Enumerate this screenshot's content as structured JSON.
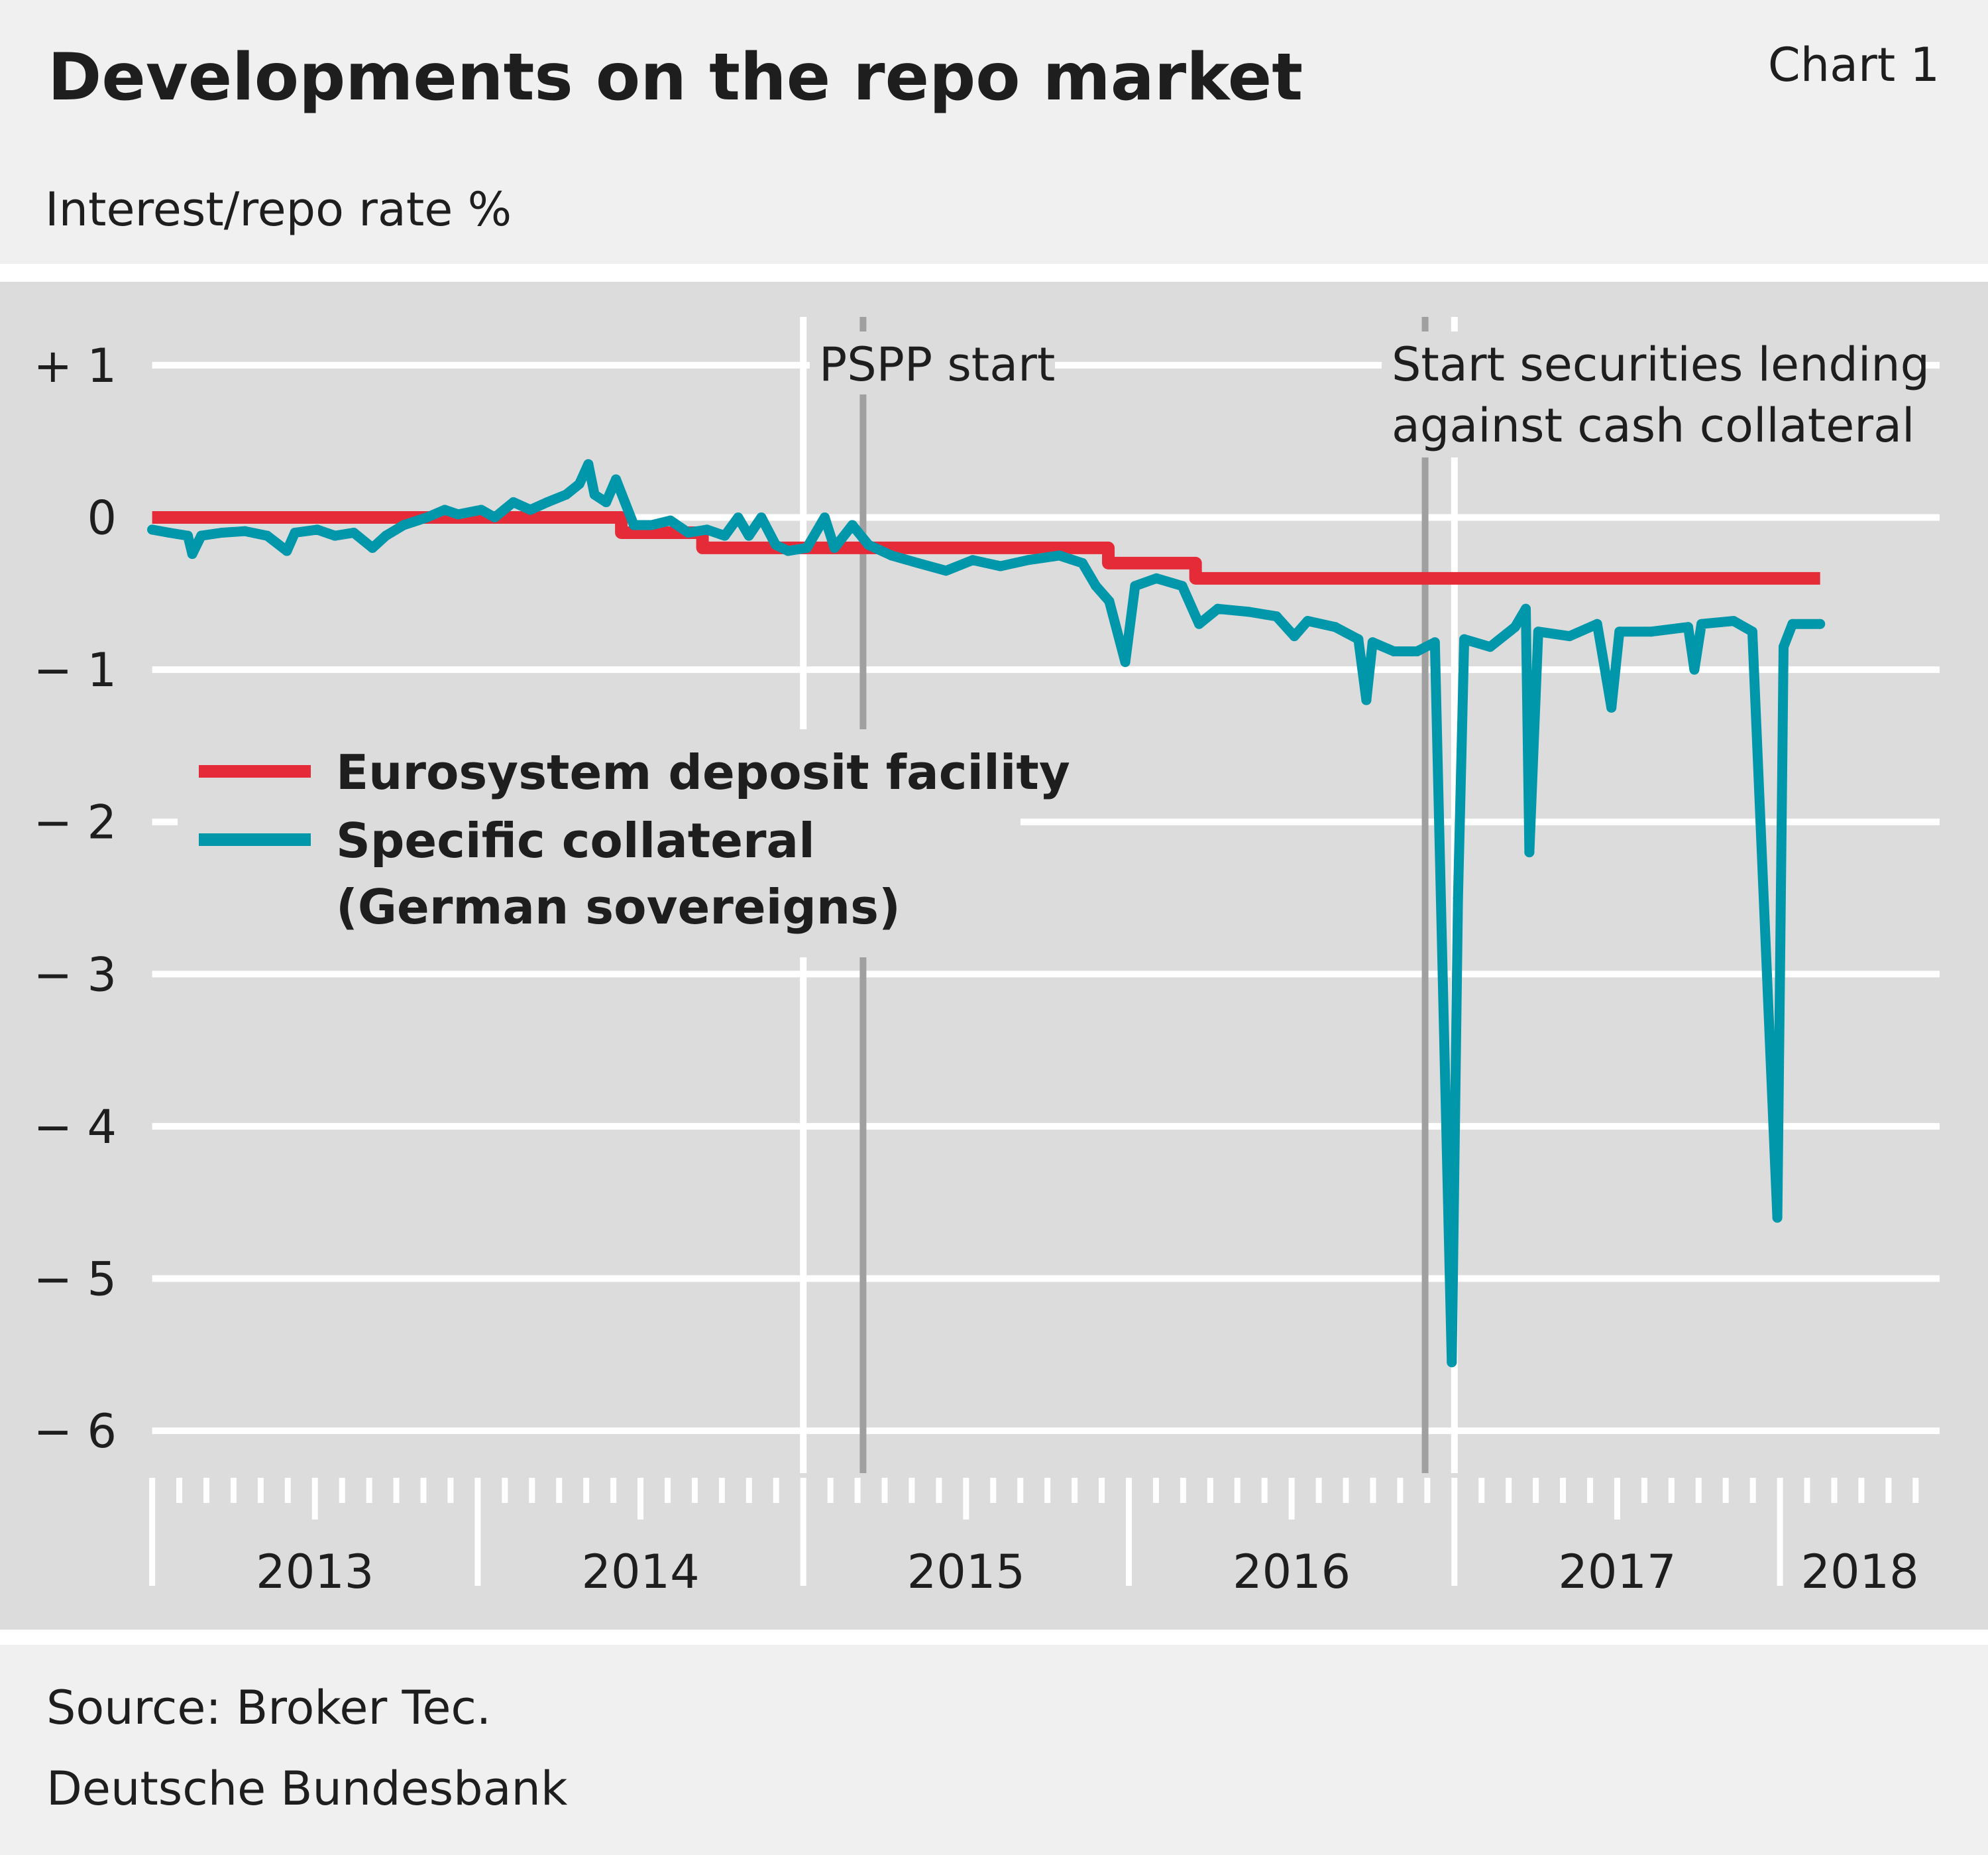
{
  "header": {
    "title": "Developments on the repo market",
    "chart_number": "Chart 1",
    "unit_label": "Interest/repo rate %"
  },
  "footer": {
    "source": "Source: Broker Tec.",
    "publisher": "Deutsche Bundesbank"
  },
  "chart_data": {
    "type": "line",
    "title": "Developments on the repo market",
    "ylabel": "Interest/repo rate %",
    "xlabel": "",
    "ylim": [
      -6,
      1
    ],
    "xlim": [
      "2013-01-01",
      "2018-06-30"
    ],
    "yticks": [
      1,
      0,
      -1,
      -2,
      -3,
      -4,
      -5,
      -6
    ],
    "ytick_labels": [
      "+ 1",
      "0",
      "− 1",
      "− 2",
      "− 3",
      "− 4",
      "− 5",
      "− 6"
    ],
    "xtick_labels": [
      "2013",
      "2014",
      "2015",
      "2016",
      "2017",
      "2018"
    ],
    "grid": true,
    "legend_position": "center-left",
    "colors": {
      "deposit": "#e52b38",
      "collateral": "#0097ab",
      "event_line": "#a0a0a0",
      "plot_bg": "#dcdcdc",
      "page_bg": "#f0f0f0"
    },
    "annotations": [
      {
        "date": "2015-03-09",
        "lines": [
          "PSPP start"
        ]
      },
      {
        "date": "2016-12-08",
        "lines": [
          "Start securities lending",
          "against cash collateral"
        ]
      }
    ],
    "series": [
      {
        "name": "Eurosystem deposit facility",
        "step": true,
        "points": [
          [
            "2013-01-01",
            0
          ],
          [
            "2014-06-11",
            -0.1
          ],
          [
            "2014-09-10",
            -0.2
          ],
          [
            "2015-12-09",
            -0.3
          ],
          [
            "2016-03-16",
            -0.4
          ],
          [
            "2018-02-15",
            -0.4
          ]
        ]
      },
      {
        "name": "Specific collateral (German sovereigns)",
        "name_lines": [
          "Specific collateral",
          "(German sovereigns)"
        ],
        "points": [
          [
            "2013-01-01",
            -0.08
          ],
          [
            "2013-01-20",
            -0.1
          ],
          [
            "2013-02-10",
            -0.12
          ],
          [
            "2013-02-15",
            -0.24
          ],
          [
            "2013-02-25",
            -0.12
          ],
          [
            "2013-03-20",
            -0.1
          ],
          [
            "2013-04-15",
            -0.09
          ],
          [
            "2013-05-10",
            -0.12
          ],
          [
            "2013-06-01",
            -0.22
          ],
          [
            "2013-06-10",
            -0.1
          ],
          [
            "2013-07-05",
            -0.08
          ],
          [
            "2013-07-25",
            -0.12
          ],
          [
            "2013-08-15",
            -0.1
          ],
          [
            "2013-09-05",
            -0.2
          ],
          [
            "2013-09-20",
            -0.12
          ],
          [
            "2013-10-10",
            -0.05
          ],
          [
            "2013-11-05",
            0.0
          ],
          [
            "2013-11-25",
            0.05
          ],
          [
            "2013-12-10",
            0.02
          ],
          [
            "2014-01-05",
            0.05
          ],
          [
            "2014-01-20",
            0.0
          ],
          [
            "2014-02-10",
            0.1
          ],
          [
            "2014-03-01",
            0.05
          ],
          [
            "2014-03-20",
            0.1
          ],
          [
            "2014-04-10",
            0.15
          ],
          [
            "2014-04-25",
            0.22
          ],
          [
            "2014-05-05",
            0.35
          ],
          [
            "2014-05-12",
            0.15
          ],
          [
            "2014-05-25",
            0.1
          ],
          [
            "2014-06-05",
            0.25
          ],
          [
            "2014-06-15",
            0.1
          ],
          [
            "2014-06-25",
            -0.05
          ],
          [
            "2014-07-15",
            -0.05
          ],
          [
            "2014-08-05",
            -0.02
          ],
          [
            "2014-08-25",
            -0.1
          ],
          [
            "2014-09-15",
            -0.08
          ],
          [
            "2014-10-05",
            -0.12
          ],
          [
            "2014-10-20",
            0.0
          ],
          [
            "2014-11-01",
            -0.12
          ],
          [
            "2014-11-15",
            0.0
          ],
          [
            "2014-12-01",
            -0.18
          ],
          [
            "2014-12-15",
            -0.22
          ],
          [
            "2015-01-05",
            -0.2
          ],
          [
            "2015-01-25",
            0.0
          ],
          [
            "2015-02-05",
            -0.2
          ],
          [
            "2015-02-25",
            -0.05
          ],
          [
            "2015-03-15",
            -0.18
          ],
          [
            "2015-04-10",
            -0.25
          ],
          [
            "2015-05-10",
            -0.3
          ],
          [
            "2015-06-10",
            -0.35
          ],
          [
            "2015-07-10",
            -0.28
          ],
          [
            "2015-08-10",
            -0.32
          ],
          [
            "2015-09-10",
            -0.28
          ],
          [
            "2015-10-15",
            -0.25
          ],
          [
            "2015-11-10",
            -0.3
          ],
          [
            "2015-11-25",
            -0.45
          ],
          [
            "2015-12-10",
            -0.55
          ],
          [
            "2015-12-28",
            -0.95
          ],
          [
            "2016-01-08",
            -0.45
          ],
          [
            "2016-02-01",
            -0.4
          ],
          [
            "2016-03-01",
            -0.45
          ],
          [
            "2016-03-20",
            -0.7
          ],
          [
            "2016-04-10",
            -0.6
          ],
          [
            "2016-05-15",
            -0.62
          ],
          [
            "2016-06-15",
            -0.65
          ],
          [
            "2016-07-05",
            -0.78
          ],
          [
            "2016-07-20",
            -0.68
          ],
          [
            "2016-08-20",
            -0.72
          ],
          [
            "2016-09-15",
            -0.8
          ],
          [
            "2016-09-24",
            -1.2
          ],
          [
            "2016-10-01",
            -0.82
          ],
          [
            "2016-10-25",
            -0.88
          ],
          [
            "2016-11-20",
            -0.88
          ],
          [
            "2016-12-10",
            -0.82
          ],
          [
            "2016-12-29",
            -5.55
          ],
          [
            "2017-01-05",
            -2.5
          ],
          [
            "2017-01-12",
            -0.8
          ],
          [
            "2017-02-10",
            -0.85
          ],
          [
            "2017-03-10",
            -0.72
          ],
          [
            "2017-03-22",
            -0.6
          ],
          [
            "2017-03-26",
            -2.2
          ],
          [
            "2017-04-05",
            -0.75
          ],
          [
            "2017-05-10",
            -0.78
          ],
          [
            "2017-06-10",
            -0.7
          ],
          [
            "2017-06-26",
            -1.25
          ],
          [
            "2017-07-05",
            -0.75
          ],
          [
            "2017-08-10",
            -0.75
          ],
          [
            "2017-09-20",
            -0.72
          ],
          [
            "2017-09-27",
            -1.0
          ],
          [
            "2017-10-05",
            -0.7
          ],
          [
            "2017-11-10",
            -0.68
          ],
          [
            "2017-12-01",
            -0.75
          ],
          [
            "2017-12-29",
            -4.6
          ],
          [
            "2018-01-05",
            -0.85
          ],
          [
            "2018-01-15",
            -0.7
          ],
          [
            "2018-02-15",
            -0.7
          ]
        ]
      }
    ]
  }
}
